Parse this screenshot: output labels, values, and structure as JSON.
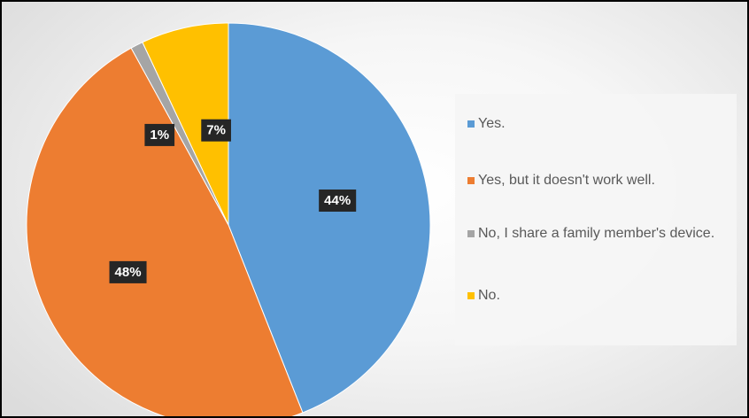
{
  "chart_data": {
    "type": "pie",
    "title": "",
    "categories": [
      "Yes.",
      "Yes, but it doesn't work well.",
      "No, I share a family member's device.",
      "No."
    ],
    "values": [
      44,
      48,
      1,
      7
    ],
    "data_labels": [
      "44%",
      "48%",
      "1%",
      "7%"
    ],
    "colors": [
      "#5B9BD5",
      "#ED7D31",
      "#A5A5A5",
      "#FFC000"
    ],
    "legend_position": "right",
    "start_angle_deg": 0,
    "direction": "clockwise"
  }
}
